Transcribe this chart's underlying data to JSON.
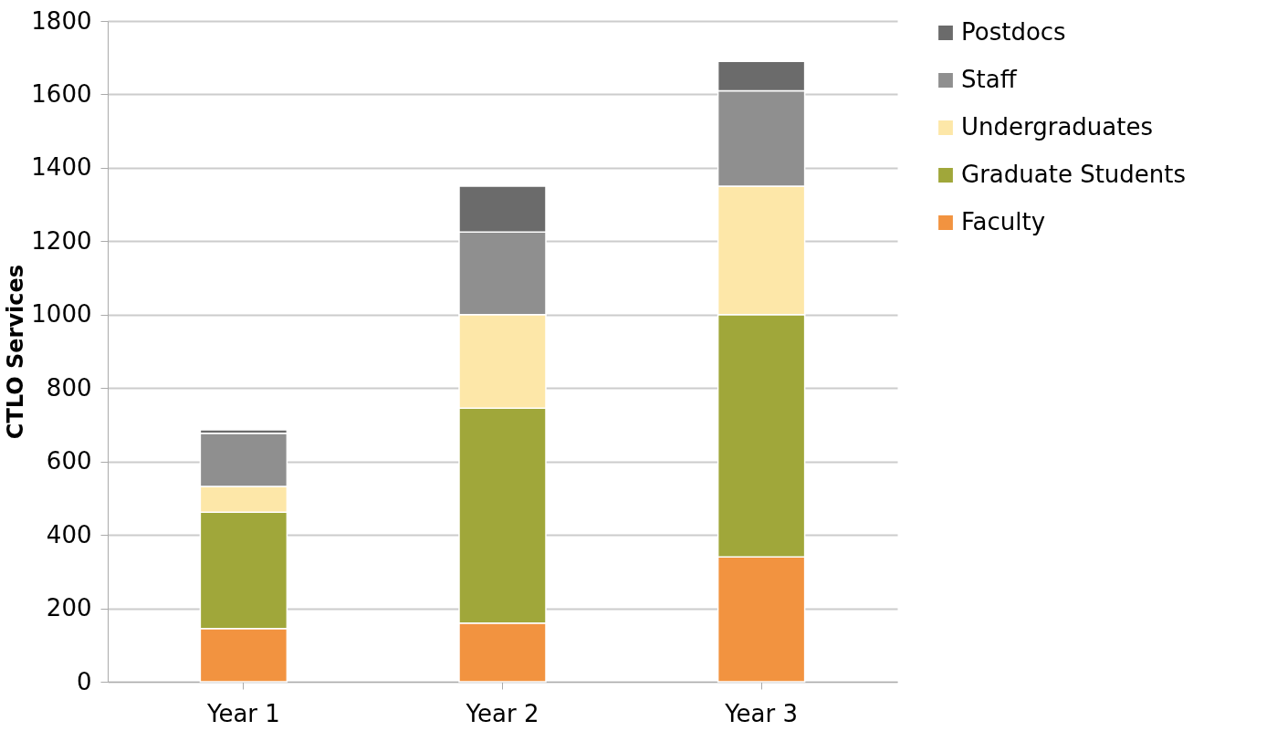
{
  "chart_data": {
    "type": "bar",
    "stacked": true,
    "ylabel": "CTLO Services",
    "categories": [
      "Year 1",
      "Year 2",
      "Year 3"
    ],
    "series": [
      {
        "name": "Faculty",
        "color": "#f29340",
        "values": [
          145,
          160,
          340
        ]
      },
      {
        "name": "Graduate Students",
        "color": "#a0a73a",
        "values": [
          317,
          585,
          660
        ]
      },
      {
        "name": "Undergraduates",
        "color": "#fde7a8",
        "values": [
          70,
          255,
          350
        ]
      },
      {
        "name": "Staff",
        "color": "#8f8f8f",
        "values": [
          145,
          225,
          260
        ]
      },
      {
        "name": "Postdocs",
        "color": "#6b6b6b",
        "values": [
          9,
          125,
          80
        ]
      }
    ],
    "ylim": [
      0,
      1800
    ],
    "yticks": [
      0,
      200,
      400,
      600,
      800,
      1000,
      1200,
      1400,
      1600,
      1800
    ],
    "grid": "y",
    "legend": "right"
  }
}
